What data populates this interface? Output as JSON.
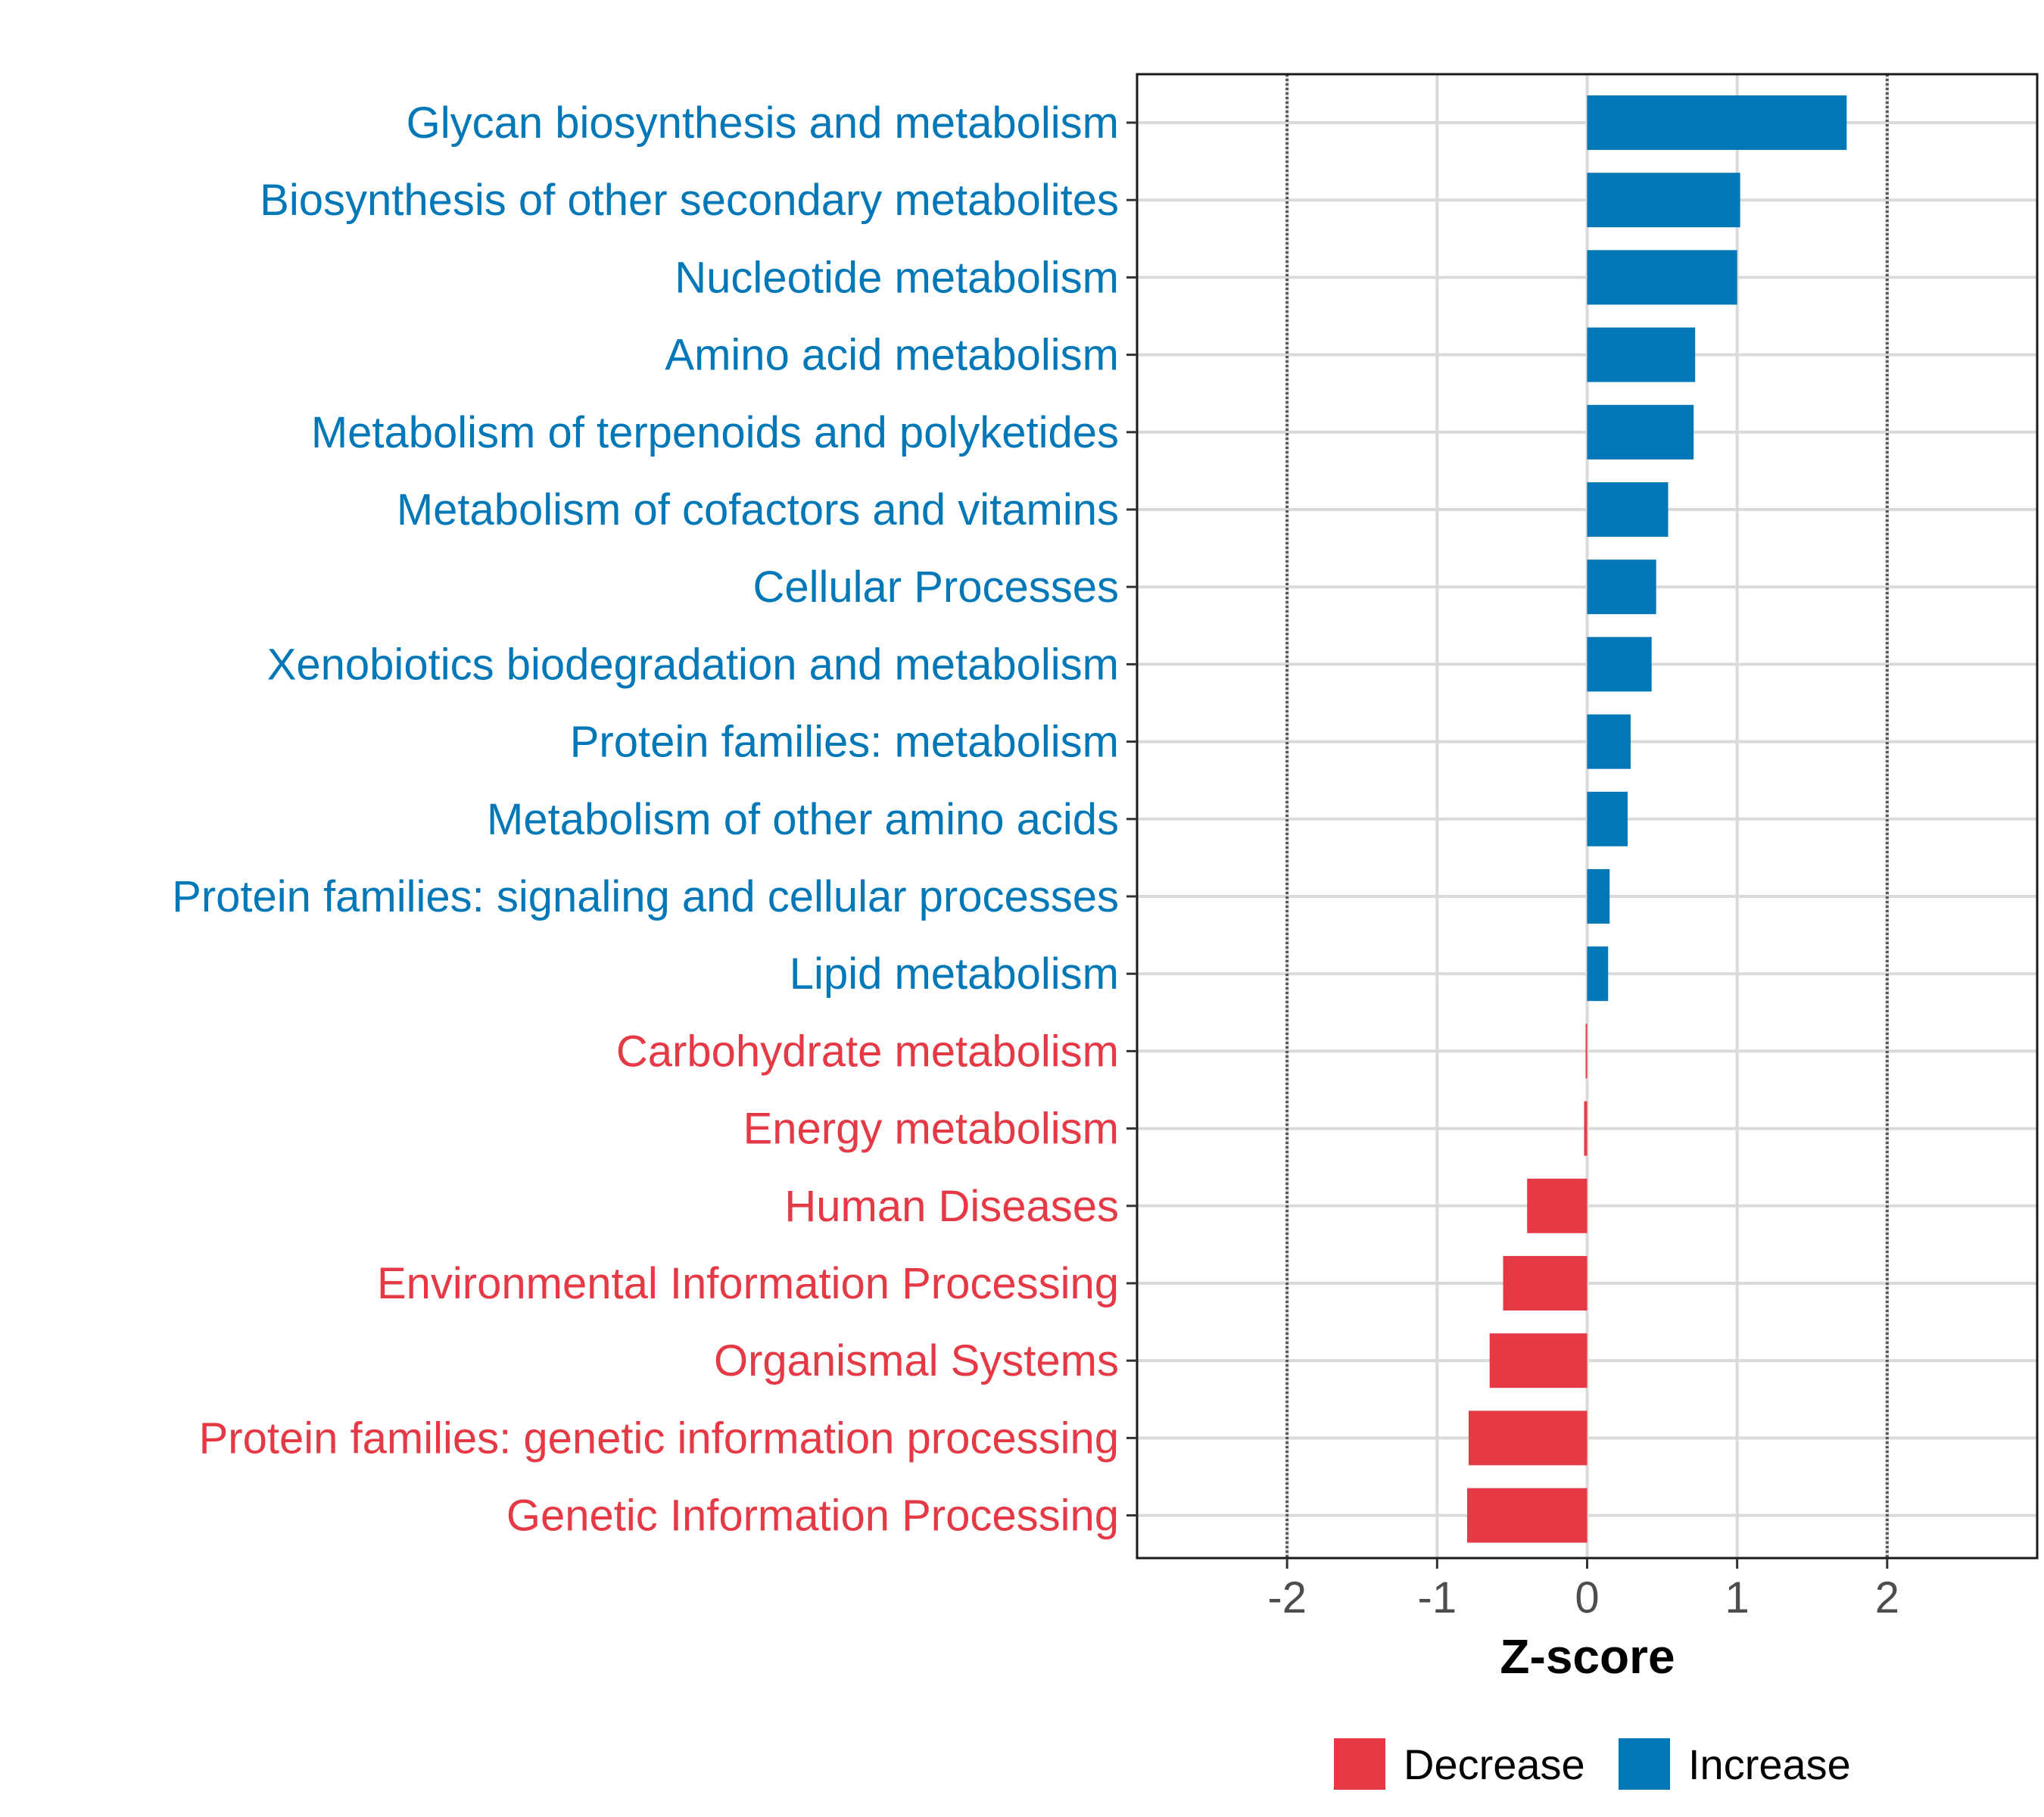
{
  "chart_data": {
    "type": "bar",
    "orientation": "horizontal",
    "title": "",
    "xlabel": "Z-score",
    "ylabel": "",
    "xlim": [
      -3.0,
      3.0
    ],
    "xticks": [
      -2,
      -1,
      0,
      1,
      2
    ],
    "xtick_labels": [
      "-2",
      "-1",
      "0",
      "1",
      "2"
    ],
    "reference_lines": [
      -2,
      2
    ],
    "grid": true,
    "legend_position": "bottom",
    "colors": {
      "Decrease": "#E63946",
      "Increase": "#0077B6"
    },
    "legend": [
      {
        "key": "Decrease",
        "label": "Decrease"
      },
      {
        "key": "Increase",
        "label": "Increase"
      }
    ],
    "categories": [
      "Glycan biosynthesis and metabolism",
      "Biosynthesis of other secondary metabolites",
      "Nucleotide metabolism",
      "Amino acid metabolism",
      "Metabolism of terpenoids and polyketides",
      "Metabolism of cofactors and vitamins",
      "Cellular Processes",
      "Xenobiotics biodegradation and metabolism",
      "Protein families: metabolism",
      "Metabolism of other amino acids",
      "Protein families: signaling and cellular processes",
      "Lipid metabolism",
      "Carbohydrate metabolism",
      "Energy metabolism",
      "Human Diseases",
      "Environmental Information Processing",
      "Organismal Systems",
      "Protein families: genetic information processing",
      "Genetic Information Processing"
    ],
    "values": [
      1.73,
      1.02,
      1.0,
      0.72,
      0.71,
      0.54,
      0.46,
      0.43,
      0.29,
      0.27,
      0.15,
      0.14,
      -0.01,
      -0.02,
      -0.4,
      -0.56,
      -0.65,
      -0.79,
      -0.8
    ],
    "groups": [
      "Increase",
      "Increase",
      "Increase",
      "Increase",
      "Increase",
      "Increase",
      "Increase",
      "Increase",
      "Increase",
      "Increase",
      "Increase",
      "Increase",
      "Decrease",
      "Decrease",
      "Decrease",
      "Decrease",
      "Decrease",
      "Decrease",
      "Decrease"
    ]
  }
}
